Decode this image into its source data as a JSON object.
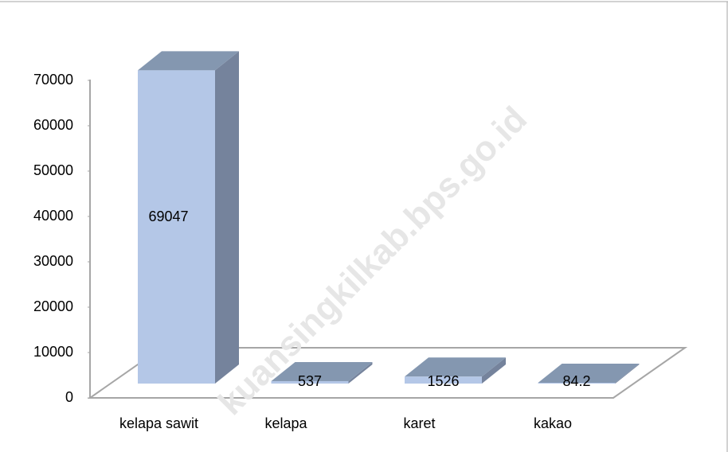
{
  "watermark": "kuansingkilkab.bps.go.id",
  "chart_data": {
    "type": "bar3d",
    "categories": [
      "kelapa sawit",
      "kelapa",
      "karet",
      "kakao"
    ],
    "values": [
      69047,
      537,
      1526,
      84.2
    ],
    "color": "#b4c7e7",
    "ylim": [
      0,
      70000
    ],
    "yticks": [
      0,
      10000,
      20000,
      30000,
      40000,
      50000,
      60000,
      70000
    ]
  }
}
